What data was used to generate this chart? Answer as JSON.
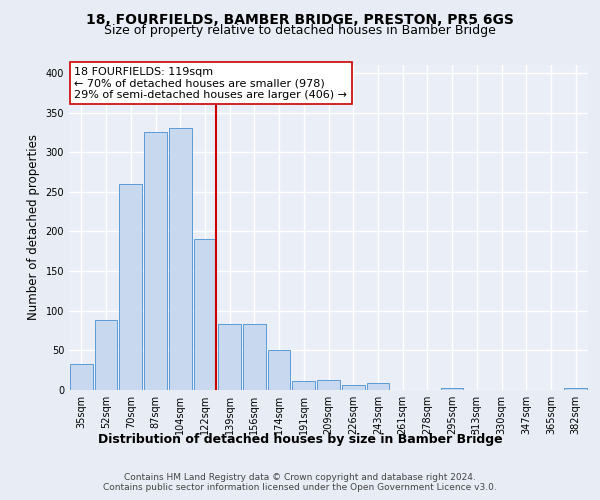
{
  "title1": "18, FOURFIELDS, BAMBER BRIDGE, PRESTON, PR5 6GS",
  "title2": "Size of property relative to detached houses in Bamber Bridge",
  "xlabel": "Distribution of detached houses by size in Bamber Bridge",
  "ylabel": "Number of detached properties",
  "bar_labels": [
    "35sqm",
    "52sqm",
    "70sqm",
    "87sqm",
    "104sqm",
    "122sqm",
    "139sqm",
    "156sqm",
    "174sqm",
    "191sqm",
    "209sqm",
    "226sqm",
    "243sqm",
    "261sqm",
    "278sqm",
    "295sqm",
    "313sqm",
    "330sqm",
    "347sqm",
    "365sqm",
    "382sqm"
  ],
  "bar_values": [
    33,
    88,
    260,
    325,
    330,
    190,
    83,
    83,
    50,
    11,
    13,
    6,
    9,
    0,
    0,
    3,
    0,
    0,
    0,
    0,
    3
  ],
  "bar_color": "#c8d9ef",
  "bar_edge_color": "#5b9bd5",
  "property_bin_index": 5,
  "vline_color": "#cc0000",
  "annotation_text": "18 FOURFIELDS: 119sqm\n← 70% of detached houses are smaller (978)\n29% of semi-detached houses are larger (406) →",
  "annotation_box_color": "#ffffff",
  "annotation_box_edge_color": "#cc0000",
  "ylim": [
    0,
    410
  ],
  "yticks": [
    0,
    50,
    100,
    150,
    200,
    250,
    300,
    350,
    400
  ],
  "footer_text": "Contains HM Land Registry data © Crown copyright and database right 2024.\nContains public sector information licensed under the Open Government Licence v3.0.",
  "background_color": "#e8edf5",
  "plot_background_color": "#eaeff7",
  "grid_color": "#ffffff",
  "title1_fontsize": 10,
  "title2_fontsize": 9,
  "xlabel_fontsize": 9,
  "ylabel_fontsize": 8.5,
  "tick_fontsize": 7,
  "annotation_fontsize": 8,
  "footer_fontsize": 6.5
}
